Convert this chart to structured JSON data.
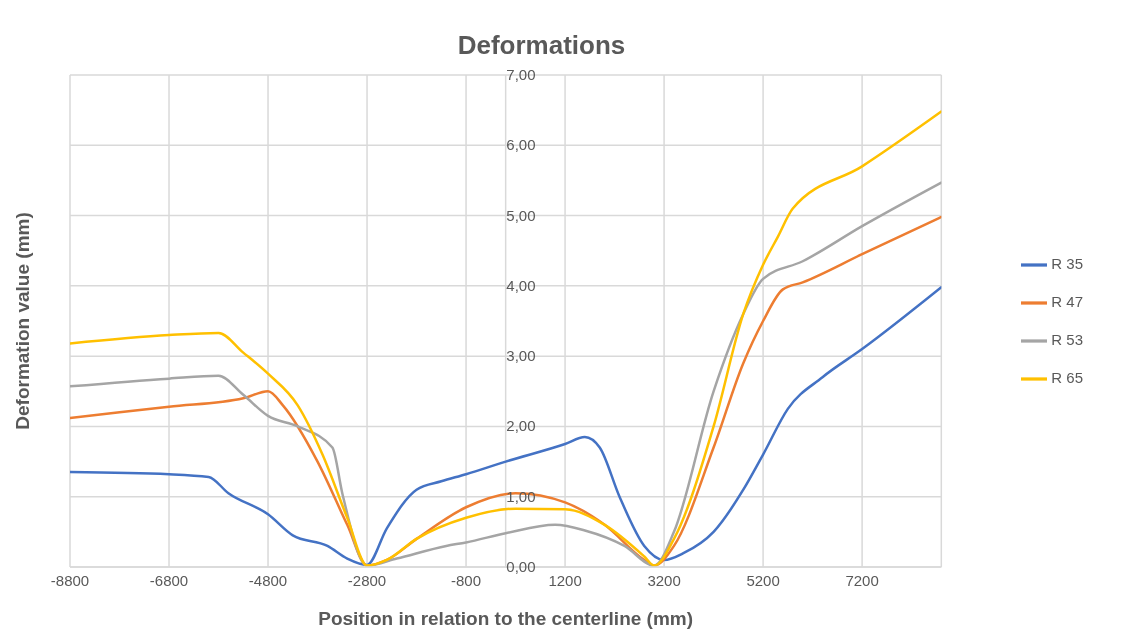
{
  "chart_data": {
    "type": "line",
    "title": "Deformations",
    "xlabel": "Position in relation to the centerline (mm)",
    "ylabel": "Deformation value (mm)",
    "xlim": [
      -8800,
      8800
    ],
    "xticks": [
      -8800,
      -6800,
      -4800,
      -2800,
      -800,
      1200,
      3200,
      5200,
      7200
    ],
    "ylim": [
      0,
      7
    ],
    "yticks": [
      {
        "value": 0,
        "label": "0,00"
      },
      {
        "value": 1,
        "label": "1,00"
      },
      {
        "value": 2,
        "label": "2,00"
      },
      {
        "value": 3,
        "label": "3,00"
      },
      {
        "value": 4,
        "label": "4,00"
      },
      {
        "value": 5,
        "label": "5,00"
      },
      {
        "value": 6,
        "label": "6,00"
      },
      {
        "value": 7,
        "label": "7,00"
      }
    ],
    "grid": true,
    "legend": "right",
    "marker": "none",
    "line_style": "solid",
    "series": [
      {
        "name": "R 35",
        "color": "#4472c4",
        "x": [
          -8800,
          -6800,
          -6000,
          -5600,
          -4800,
          -4300,
          -3600,
          -3200,
          -2800,
          -2400,
          -1800,
          -1300,
          -800,
          0,
          1200,
          1600,
          1900,
          2300,
          2800,
          3200,
          3600,
          4200,
          4800,
          5200,
          5700,
          6400,
          7200,
          8800
        ],
        "values": [
          1.35,
          1.32,
          1.28,
          1.05,
          0.75,
          0.45,
          0.3,
          0.12,
          0.03,
          0.55,
          1.1,
          1.22,
          1.32,
          1.5,
          1.75,
          1.85,
          1.7,
          1.0,
          0.3,
          0.1,
          0.2,
          0.5,
          1.1,
          1.6,
          2.25,
          2.7,
          3.1,
          3.98
        ]
      },
      {
        "name": "R 47",
        "color": "#ed7d31",
        "x": [
          -8800,
          -6800,
          -5300,
          -4800,
          -4500,
          -3800,
          -3200,
          -2800,
          -2400,
          -1800,
          -800,
          200,
          1200,
          2000,
          2800,
          3000,
          3400,
          4200,
          4800,
          5200,
          5600,
          6000,
          7200,
          8800
        ],
        "values": [
          2.12,
          2.28,
          2.4,
          2.5,
          2.3,
          1.5,
          0.6,
          0.02,
          0.1,
          0.4,
          0.85,
          1.05,
          0.92,
          0.6,
          0.1,
          0.02,
          0.3,
          1.7,
          2.9,
          3.5,
          3.95,
          4.05,
          4.45,
          4.98
        ]
      },
      {
        "name": "R 53",
        "color": "#a5a5a5",
        "x": [
          -8800,
          -6800,
          -5800,
          -5300,
          -4800,
          -4200,
          -3500,
          -3300,
          -2800,
          -2200,
          -1200,
          -800,
          0,
          1000,
          1600,
          2400,
          3000,
          3400,
          4200,
          4800,
          5200,
          6000,
          7200,
          8800
        ],
        "values": [
          2.57,
          2.68,
          2.72,
          2.45,
          2.15,
          2.0,
          1.7,
          1.05,
          0.02,
          0.12,
          0.3,
          0.35,
          0.48,
          0.6,
          0.52,
          0.3,
          0.02,
          0.5,
          2.5,
          3.6,
          4.1,
          4.35,
          4.85,
          5.47
        ]
      },
      {
        "name": "R 65",
        "color": "#ffc000",
        "x": [
          -8800,
          -6800,
          -5800,
          -5300,
          -4800,
          -4200,
          -3700,
          -3200,
          -2800,
          -2400,
          -1800,
          -800,
          200,
          1200,
          2000,
          2800,
          3000,
          3400,
          4200,
          4800,
          5200,
          5500,
          5800,
          7200,
          8800
        ],
        "values": [
          3.18,
          3.3,
          3.33,
          3.05,
          2.75,
          2.3,
          1.6,
          0.7,
          0.02,
          0.1,
          0.4,
          0.7,
          0.83,
          0.82,
          0.6,
          0.15,
          0.02,
          0.4,
          2.0,
          3.6,
          4.3,
          4.7,
          5.1,
          5.7,
          6.48
        ]
      }
    ]
  }
}
